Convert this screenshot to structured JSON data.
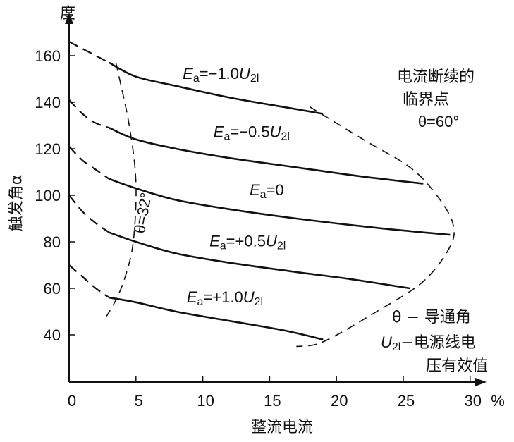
{
  "chart_data": {
    "type": "line",
    "xlabel": "整流电流",
    "ylabel": "触发角α",
    "yunit": "度",
    "xunit": "%",
    "xlim": [
      0,
      32
    ],
    "ylim": [
      26,
      170
    ],
    "xticks": [
      0,
      5,
      10,
      15,
      20,
      25,
      30
    ],
    "yticks": [
      40,
      60,
      80,
      100,
      120,
      140,
      160
    ],
    "series": [
      {
        "name": "E_a=−1.0U_2l",
        "label_main": "E",
        "label_sub": "a",
        "label_rest": "=−1.0",
        "label_u": "U",
        "label_usub": "2l",
        "label_pos": [
          8.5,
          150
        ],
        "dashed": [
          [
            0,
            166
          ],
          [
            1,
            163
          ],
          [
            2,
            160
          ],
          [
            3,
            157
          ]
        ],
        "solid": [
          [
            3,
            157
          ],
          [
            5,
            151
          ],
          [
            8,
            147
          ],
          [
            12,
            142
          ],
          [
            16,
            138
          ],
          [
            19,
            135
          ]
        ]
      },
      {
        "name": "E_a=−0.5U_2l",
        "label_main": "E",
        "label_sub": "a",
        "label_rest": "=−0.5",
        "label_u": "U",
        "label_usub": "2l",
        "label_pos": [
          10.8,
          125
        ],
        "dashed": [
          [
            0,
            141
          ],
          [
            1,
            135
          ],
          [
            2,
            131
          ],
          [
            3,
            129
          ]
        ],
        "solid": [
          [
            3,
            129
          ],
          [
            5,
            124
          ],
          [
            8,
            120
          ],
          [
            12,
            116
          ],
          [
            17,
            112
          ],
          [
            22,
            108
          ],
          [
            26.5,
            105
          ]
        ]
      },
      {
        "name": "E_a=0",
        "label_main": "E",
        "label_sub": "a",
        "label_rest": "=0",
        "label_u": "",
        "label_usub": "",
        "label_pos": [
          13.5,
          100
        ],
        "dashed": [
          [
            0,
            121
          ],
          [
            1,
            115
          ],
          [
            2,
            111
          ],
          [
            3,
            107
          ]
        ],
        "solid": [
          [
            3,
            107
          ],
          [
            5,
            103
          ],
          [
            8,
            98
          ],
          [
            12,
            94
          ],
          [
            17,
            90
          ],
          [
            23,
            86
          ],
          [
            28.5,
            83
          ]
        ]
      },
      {
        "name": "E_a=+0.5U_2l",
        "label_main": "E",
        "label_sub": "a",
        "label_rest": "=+0.5",
        "label_u": "U",
        "label_usub": "2l",
        "label_pos": [
          10.5,
          78
        ],
        "dashed": [
          [
            0,
            100
          ],
          [
            1,
            93
          ],
          [
            2,
            88
          ],
          [
            3,
            84
          ]
        ],
        "solid": [
          [
            3,
            84
          ],
          [
            5,
            80
          ],
          [
            8,
            75
          ],
          [
            12,
            71
          ],
          [
            17,
            67
          ],
          [
            21,
            64
          ],
          [
            25.5,
            60
          ]
        ]
      },
      {
        "name": "E_a=+1.0U_2l",
        "label_main": "E",
        "label_sub": "a",
        "label_rest": "=+1.0",
        "label_u": "U",
        "label_usub": "2l",
        "label_pos": [
          8.8,
          54
        ],
        "dashed": [
          [
            0,
            70
          ],
          [
            1,
            65
          ],
          [
            2,
            60
          ],
          [
            3,
            56
          ]
        ],
        "solid": [
          [
            3,
            56
          ],
          [
            5,
            54
          ],
          [
            8,
            50
          ],
          [
            12,
            46
          ],
          [
            16,
            42
          ],
          [
            19,
            38
          ]
        ]
      }
    ],
    "boundaries": [
      {
        "name": "θ=32°",
        "points": [
          [
            3.5,
            157
          ],
          [
            4.5,
            130
          ],
          [
            5,
            105
          ],
          [
            4.8,
            80
          ],
          [
            4.2,
            65
          ],
          [
            3.5,
            55
          ],
          [
            2.8,
            48
          ]
        ]
      },
      {
        "name": "θ=60°",
        "points": [
          [
            18,
            138
          ],
          [
            22,
            124
          ],
          [
            25.5,
            112
          ],
          [
            27.5,
            100
          ],
          [
            28.7,
            88
          ],
          [
            28.5,
            78
          ],
          [
            26.5,
            63
          ],
          [
            23,
            50
          ],
          [
            19,
            37
          ],
          [
            17,
            35
          ]
        ]
      }
    ],
    "annotations": {
      "theta32": "θ=32°",
      "critical_line1": "电流断续的",
      "critical_line2": "临界点",
      "critical_line3": "θ=60°",
      "legend_theta": "θ − 导通角",
      "legend_u_main": "U",
      "legend_u_sub": "2l",
      "legend_u_rest": "−电源线电",
      "legend_u_line2": "压有效值"
    }
  }
}
